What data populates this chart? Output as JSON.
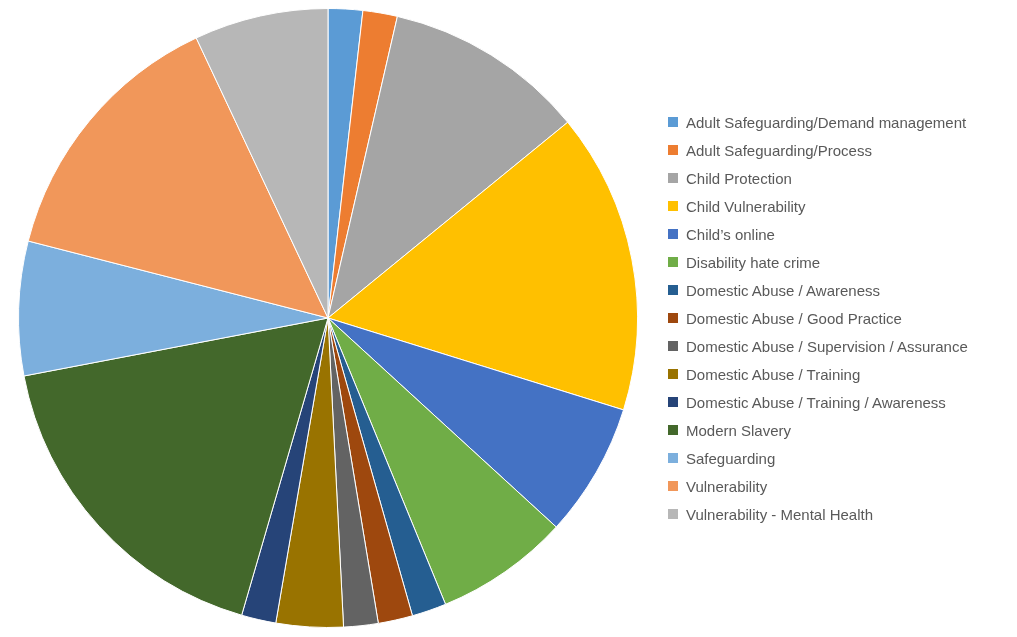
{
  "chart_data": {
    "type": "pie",
    "legend": "right",
    "categories": [
      "Adult Safeguarding/Demand management",
      "Adult Safeguarding/Process",
      "Child Protection",
      "Child Vulnerability",
      "Child’s online",
      "Disability hate crime",
      "Domestic Abuse / Awareness",
      "Domestic Abuse / Good Practice",
      "Domestic Abuse / Supervision / Assurance",
      "Domestic Abuse / Training",
      "Domestic Abuse / Training / Awareness",
      "Modern Slavery",
      "Safeguarding",
      "Vulnerability",
      "Vulnerability - Mental Health"
    ],
    "values": [
      1.8,
      1.8,
      10.5,
      15.7,
      7,
      7,
      1.8,
      1.8,
      1.8,
      3.5,
      1.8,
      17.5,
      7,
      14,
      7
    ],
    "colors": [
      "#5b9bd5",
      "#ed7d31",
      "#a5a5a5",
      "#ffc000",
      "#4472c4",
      "#70ad47",
      "#255e91",
      "#9e480e",
      "#636363",
      "#997300",
      "#264478",
      "#43682b",
      "#7cafdd",
      "#f1975a",
      "#b7b7b7"
    ]
  }
}
